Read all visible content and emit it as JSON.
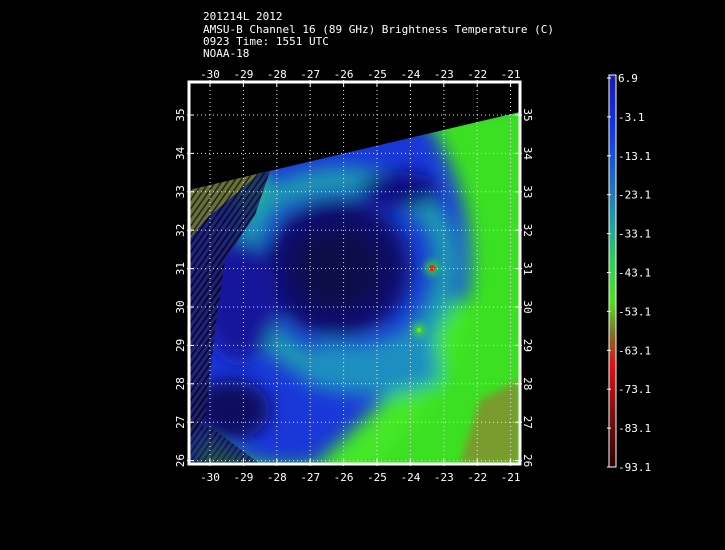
{
  "header": {
    "storm_id": "201214L 2012",
    "product": "AMSU-B Channel 16 (89 GHz) Brightness Temperature (C)",
    "datetime": "0923 Time: 1551 UTC",
    "satellite": "NOAA-18"
  },
  "map": {
    "lon_ticks": [
      "-30",
      "-29",
      "-28",
      "-27",
      "-26",
      "-25",
      "-24",
      "-23",
      "-22",
      "-21"
    ],
    "lat_ticks": [
      "35",
      "34",
      "33",
      "32",
      "31",
      "30",
      "29",
      "28",
      "27",
      "26"
    ],
    "grid": true,
    "colors": {
      "background": "#000000",
      "deep_blue": "#0a0a5a",
      "blue": "#1b2fd6",
      "teal": "#1f8fa8",
      "green": "#3ce61e",
      "olive": "#8c7a3a",
      "hot_spot": "#e03010"
    }
  },
  "colorbar": {
    "labels": [
      "6.9",
      "-3.1",
      "-13.1",
      "-23.1",
      "-33.1",
      "-43.1",
      "-53.1",
      "-63.1",
      "-73.1",
      "-83.1",
      "-93.1"
    ]
  }
}
